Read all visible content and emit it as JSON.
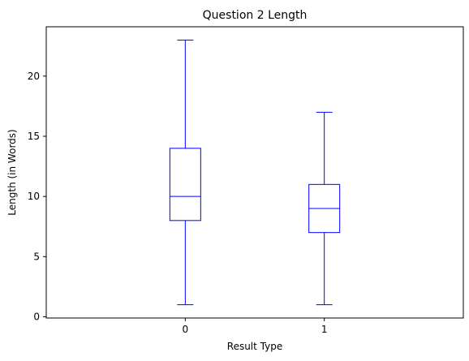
{
  "chart_data": {
    "type": "box",
    "title": "Question 2 Length",
    "xlabel": "Result Type",
    "ylabel": "Length (in Words)",
    "categories": [
      "0",
      "1"
    ],
    "boxes": [
      {
        "category": "0",
        "whisker_low": 1,
        "q1": 8,
        "median": 10,
        "q3": 14,
        "whisker_high": 23
      },
      {
        "category": "1",
        "whisker_low": 1,
        "q1": 7,
        "median": 9,
        "q3": 11,
        "whisker_high": 17
      }
    ],
    "ylim": [
      -0.1,
      24.1
    ],
    "yticks": [
      0,
      5,
      10,
      15,
      20
    ],
    "ytick_labels": [
      "0",
      "5",
      "10",
      "15",
      "20"
    ],
    "xtick_labels": [
      "0",
      "1"
    ],
    "grid": false,
    "box_color": "#0000ff"
  }
}
